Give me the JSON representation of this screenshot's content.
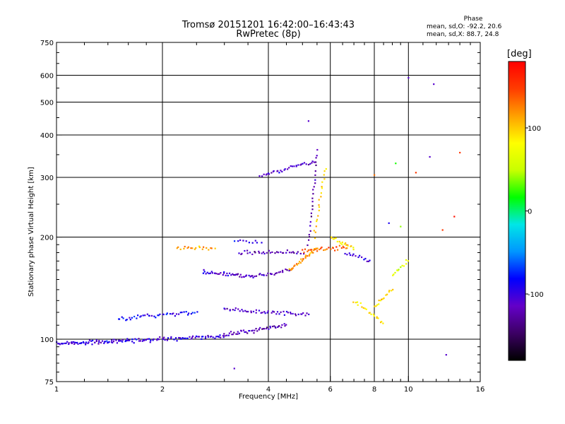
{
  "chart_data": {
    "type": "scatter",
    "title": "Tromsø 20151201 16:42:00–16:43:43",
    "subtitle": "RwPretec (8p)",
    "xlabel": "Frequency [MHz]",
    "ylabel": "Stationary phase Virtual Height [km]",
    "x_scale": "log",
    "y_scale": "log",
    "xlim": [
      1,
      16
    ],
    "ylim": [
      75,
      750
    ],
    "x_ticks": [
      1,
      2,
      4,
      6,
      8,
      10,
      16
    ],
    "x_tick_labels": [
      "1",
      "2",
      "4",
      "6",
      "8",
      "10",
      "16"
    ],
    "y_ticks": [
      75,
      100,
      200,
      300,
      400,
      500,
      600,
      750
    ],
    "y_tick_labels": [
      "75",
      "100",
      "200",
      "300",
      "400",
      "500",
      "600",
      "750"
    ],
    "grid": true,
    "phase_stats": {
      "heading": "Phase",
      "o_mode": "mean, sd,O: -92.2, 20.6",
      "x_mode": "mean, sd,X:  88.7, 24.8"
    },
    "colorbar": {
      "unit": "[deg]",
      "range": [
        -180,
        180
      ],
      "ticks": [
        100,
        0,
        -100
      ],
      "tick_labels": [
        "100",
        "0",
        "-100"
      ],
      "colors": [
        "#000000",
        "#3c0064",
        "#6400c8",
        "#0000ff",
        "#0096ff",
        "#00e6e6",
        "#00ff00",
        "#c8ff00",
        "#ffff00",
        "#ffa000",
        "#ff3c00",
        "#ff0000"
      ]
    },
    "traces": [
      {
        "x_range": [
          1.0,
          1.6
        ],
        "h_start": 97,
        "h_end": 99,
        "phase": -100,
        "n": 70
      },
      {
        "x_range": [
          1.6,
          3.0
        ],
        "h_start": 99,
        "h_end": 102,
        "phase": -100,
        "n": 70
      },
      {
        "x_range": [
          3.0,
          4.5
        ],
        "h_start": 103,
        "h_end": 110,
        "phase": -120,
        "n": 50
      },
      {
        "x_range": [
          1.5,
          2.5
        ],
        "h_start": 115,
        "h_end": 120,
        "phase": -90,
        "n": 45
      },
      {
        "x_range": [
          3.0,
          5.2
        ],
        "h_start": 122,
        "h_end": 118,
        "phase": -110,
        "n": 50
      },
      {
        "x_range": [
          2.6,
          3.6
        ],
        "h_start": 158,
        "h_end": 153,
        "phase": -110,
        "n": 40
      },
      {
        "x_range": [
          3.6,
          4.6
        ],
        "h_start": 153,
        "h_end": 160,
        "phase": -120,
        "n": 25
      },
      {
        "x_range": [
          4.6,
          5.5
        ],
        "h_start": 160,
        "h_end": 185,
        "phase": 120,
        "n": 30
      },
      {
        "x_range": [
          3.3,
          5.0
        ],
        "h_start": 180,
        "h_end": 180,
        "phase": -120,
        "n": 35
      },
      {
        "x_range": [
          5.0,
          6.7
        ],
        "h_start": 183,
        "h_end": 187,
        "phase": 135,
        "n": 30
      },
      {
        "x_range": [
          2.2,
          2.8
        ],
        "h_start": 187,
        "h_end": 186,
        "phase": 115,
        "n": 20
      },
      {
        "x_range": [
          3.2,
          3.8
        ],
        "h_start": 196,
        "h_end": 194,
        "phase": -95,
        "n": 10
      },
      {
        "x_range": [
          5.2,
          5.5
        ],
        "h_start": 190,
        "h_end": 360,
        "phase": -120,
        "n": 25
      },
      {
        "x_range": [
          5.4,
          5.8
        ],
        "h_start": 200,
        "h_end": 320,
        "phase": 100,
        "n": 20
      },
      {
        "x_range": [
          3.8,
          5.4
        ],
        "h_start": 302,
        "h_end": 335,
        "phase": -110,
        "n": 35
      },
      {
        "x_range": [
          6.0,
          7.0
        ],
        "h_start": 200,
        "h_end": 185,
        "phase": 90,
        "n": 20
      },
      {
        "x_range": [
          6.6,
          7.8
        ],
        "h_start": 180,
        "h_end": 170,
        "phase": -100,
        "n": 15
      },
      {
        "x_range": [
          7.0,
          8.5
        ],
        "h_start": 130,
        "h_end": 112,
        "phase": 90,
        "n": 20
      },
      {
        "x_range": [
          8.0,
          9.0
        ],
        "h_start": 125,
        "h_end": 140,
        "phase": 100,
        "n": 15
      },
      {
        "x_range": [
          9.0,
          10.0
        ],
        "h_start": 155,
        "h_end": 170,
        "phase": 60,
        "n": 12
      }
    ],
    "scatter_points": [
      {
        "x": 10.0,
        "y": 590,
        "phase": -110
      },
      {
        "x": 11.8,
        "y": 565,
        "phase": -110
      },
      {
        "x": 5.2,
        "y": 440,
        "phase": -110
      },
      {
        "x": 14.0,
        "y": 355,
        "phase": 150
      },
      {
        "x": 11.5,
        "y": 345,
        "phase": -110
      },
      {
        "x": 12.8,
        "y": 90,
        "phase": -110
      },
      {
        "x": 3.2,
        "y": 82,
        "phase": -110
      },
      {
        "x": 9.2,
        "y": 330,
        "phase": 20
      },
      {
        "x": 8.0,
        "y": 305,
        "phase": 130
      },
      {
        "x": 10.5,
        "y": 310,
        "phase": 150
      },
      {
        "x": 8.8,
        "y": 220,
        "phase": -90
      },
      {
        "x": 9.5,
        "y": 215,
        "phase": 40
      },
      {
        "x": 12.5,
        "y": 210,
        "phase": 150
      },
      {
        "x": 13.5,
        "y": 230,
        "phase": 170
      }
    ]
  }
}
